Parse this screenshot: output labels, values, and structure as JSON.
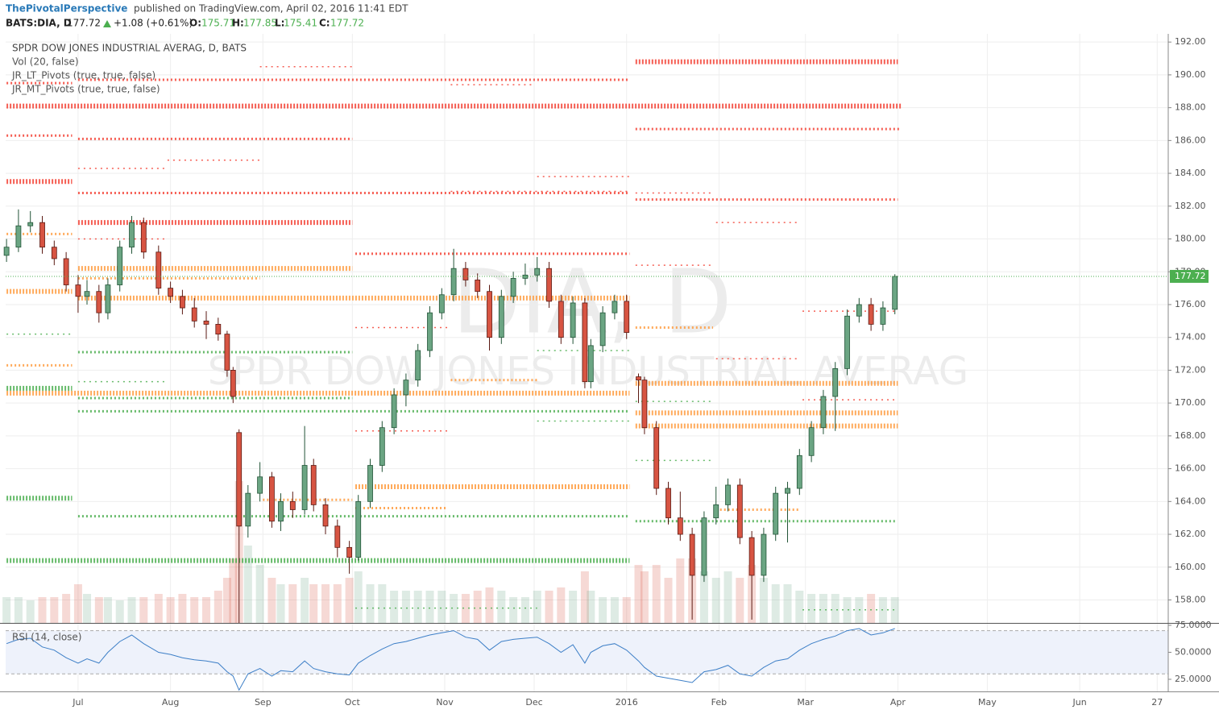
{
  "header": {
    "author": "ThePivotalPerspective",
    "published": "published on TradingView.com, April 02, 2016 11:41 EDT",
    "symbol": "BATS:DIA, D",
    "last": "177.72",
    "change": "+1.08 (+0.61%)",
    "open_label": "O:",
    "open": "175.71",
    "high_label": "H:",
    "high": "177.85",
    "low_label": "L:",
    "low": "175.41",
    "close_label": "C:",
    "close": "177.72"
  },
  "chart_data": {
    "type": "candlestick",
    "title": "SPDR DOW JONES INDUSTRIAL AVERAG, D, BATS",
    "studies": [
      "Vol (20, false)",
      "JR_LT_Pivots (true, true, false)",
      "JR_MT_Pivots (true, true, false)"
    ],
    "watermark": [
      "DIA, D",
      "SPDR DOW JONES INDUSTRIAL AVERAG"
    ],
    "up_color": "#6ba583",
    "down_color": "#d75442",
    "x": [
      -24,
      -20,
      -16,
      -12,
      -8,
      -4,
      0,
      3,
      7,
      10,
      14,
      18,
      22,
      27,
      31,
      35,
      39,
      43,
      47,
      50,
      52,
      54,
      57,
      61,
      65,
      68,
      72,
      76,
      79,
      83,
      87,
      91,
      94,
      98,
      102,
      106,
      110,
      114,
      118,
      122,
      126,
      130,
      134,
      138,
      142,
      146,
      150,
      154,
      158,
      162,
      166,
      170,
      172,
      176,
      180,
      184,
      188,
      190,
      194,
      198,
      202,
      206,
      210,
      214,
      218,
      222,
      226,
      230,
      234,
      238,
      242,
      246,
      250,
      254,
      258,
      262,
      266,
      270,
      274
    ],
    "open": [
      179.0,
      179.5,
      180.8,
      181.0,
      179.5,
      178.8,
      177.2,
      176.5,
      176.8,
      175.5,
      177.2,
      179.5,
      181.0,
      179.2,
      177.0,
      176.5,
      175.8,
      175.0,
      174.8,
      174.2,
      172.0,
      168.2,
      162.5,
      164.5,
      165.5,
      162.8,
      164.0,
      163.5,
      166.2,
      163.8,
      162.5,
      161.2,
      160.6,
      164.0,
      166.2,
      168.5,
      170.5,
      171.4,
      173.2,
      175.5,
      176.6,
      178.2,
      177.5,
      176.8,
      174.0,
      176.5,
      177.6,
      177.8,
      178.2,
      176.2,
      174.0,
      176.1,
      171.3,
      173.5,
      175.5,
      176.2,
      171.6,
      171.4,
      168.5,
      164.8,
      163.0,
      162.0,
      159.5,
      163.0,
      163.8,
      165.0,
      161.8,
      159.5,
      162.0,
      164.5,
      164.8,
      166.8,
      168.5,
      170.4,
      172.1,
      175.3,
      176.0,
      174.8,
      175.71
    ],
    "high": [
      180.0,
      181.8,
      181.7,
      181.4,
      179.9,
      179.2,
      177.8,
      177.5,
      177.2,
      177.6,
      179.9,
      181.4,
      181.3,
      179.6,
      177.4,
      176.9,
      176.4,
      175.6,
      175.2,
      174.4,
      172.2,
      168.4,
      165.0,
      166.4,
      165.8,
      164.5,
      164.6,
      168.6,
      166.6,
      164.2,
      162.9,
      161.6,
      164.4,
      166.6,
      168.9,
      170.9,
      171.8,
      173.6,
      175.9,
      177.0,
      179.4,
      178.6,
      177.9,
      177.2,
      176.9,
      178.0,
      178.5,
      178.9,
      178.6,
      176.6,
      176.5,
      176.4,
      173.9,
      175.9,
      176.6,
      176.6,
      171.8,
      171.6,
      168.9,
      165.2,
      164.6,
      162.4,
      163.4,
      164.9,
      165.4,
      165.4,
      162.2,
      162.4,
      164.9,
      165.2,
      167.2,
      168.9,
      170.8,
      172.5,
      175.7,
      176.4,
      176.4,
      176.2,
      177.85
    ],
    "low": [
      178.6,
      179.2,
      180.4,
      179.1,
      178.4,
      176.8,
      175.5,
      176.0,
      174.9,
      175.1,
      176.8,
      179.1,
      178.8,
      176.6,
      176.1,
      175.4,
      174.6,
      173.9,
      173.8,
      171.6,
      170.0,
      156.6,
      161.8,
      164.0,
      162.4,
      162.2,
      163.0,
      163.2,
      163.4,
      162.0,
      160.6,
      159.6,
      160.4,
      163.6,
      165.8,
      168.1,
      169.8,
      171.0,
      172.8,
      175.1,
      176.2,
      177.1,
      176.4,
      173.2,
      173.6,
      176.1,
      177.2,
      177.4,
      175.8,
      173.6,
      173.6,
      170.9,
      170.9,
      173.1,
      175.1,
      173.9,
      170.0,
      168.1,
      164.4,
      162.6,
      161.6,
      156.8,
      159.1,
      162.6,
      163.4,
      161.4,
      156.8,
      159.1,
      161.6,
      161.5,
      164.4,
      166.4,
      168.1,
      168.3,
      171.7,
      174.9,
      174.4,
      174.4,
      175.41
    ],
    "close": [
      179.5,
      180.8,
      181.0,
      179.5,
      178.8,
      177.2,
      176.5,
      176.8,
      175.5,
      177.2,
      179.5,
      181.0,
      179.2,
      177.0,
      176.5,
      175.8,
      175.0,
      174.8,
      174.2,
      172.0,
      170.4,
      162.5,
      164.5,
      165.5,
      162.8,
      164.0,
      163.5,
      166.2,
      163.8,
      162.5,
      161.2,
      160.6,
      164.0,
      166.2,
      168.5,
      170.5,
      171.4,
      173.2,
      175.5,
      176.6,
      178.2,
      177.5,
      176.8,
      174.0,
      176.5,
      177.6,
      177.8,
      178.2,
      176.2,
      174.0,
      176.1,
      171.3,
      173.5,
      175.5,
      176.2,
      174.3,
      171.4,
      168.5,
      164.8,
      163.0,
      162.0,
      159.5,
      163.0,
      163.8,
      165.0,
      161.8,
      159.5,
      162.0,
      164.5,
      164.8,
      166.8,
      168.5,
      170.4,
      172.1,
      175.3,
      176.0,
      174.8,
      175.8,
      177.72
    ],
    "volume": [
      4,
      4,
      3.5,
      4,
      4,
      4.5,
      6,
      4.5,
      4,
      4,
      3.5,
      4,
      4,
      4.5,
      4,
      4.5,
      4,
      4,
      5,
      7,
      10,
      22,
      12,
      9,
      7,
      6,
      6,
      7,
      6,
      6,
      6,
      7,
      8,
      6,
      6,
      5,
      5,
      5,
      5,
      5,
      4.5,
      4.5,
      5,
      5.5,
      5,
      4,
      4,
      5,
      5,
      5.5,
      5,
      8,
      5,
      4,
      4,
      4,
      9,
      8,
      9,
      7,
      10,
      10,
      8,
      7,
      8,
      7,
      9,
      7,
      6,
      6,
      5,
      4.5,
      4.5,
      4.5,
      4,
      4,
      4.5,
      4,
      4
    ],
    "volume_lim": [
      0,
      25
    ],
    "xlim": [
      -24.3,
      365.7
    ],
    "xticks": [
      {
        "value": 0,
        "label": "Jul"
      },
      {
        "value": 31,
        "label": "Aug"
      },
      {
        "value": 62,
        "label": "Sep"
      },
      {
        "value": 92,
        "label": "Oct"
      },
      {
        "value": 123,
        "label": "Nov"
      },
      {
        "value": 153,
        "label": "Dec"
      },
      {
        "value": 184,
        "label": "2016"
      },
      {
        "value": 215,
        "label": "Feb"
      },
      {
        "value": 244,
        "label": "Mar"
      },
      {
        "value": 275,
        "label": "Apr"
      },
      {
        "value": 305,
        "label": "May"
      },
      {
        "value": 336,
        "label": "Jun"
      },
      {
        "value": 362,
        "label": "27"
      }
    ],
    "ylim": [
      156.6,
      192.5
    ],
    "yticks": [
      {
        "value": 158,
        "label": "158.00"
      },
      {
        "value": 160,
        "label": "160.00"
      },
      {
        "value": 162,
        "label": "162.00"
      },
      {
        "value": 164,
        "label": "164.00"
      },
      {
        "value": 166,
        "label": "166.00"
      },
      {
        "value": 168,
        "label": "168.00"
      },
      {
        "value": 170,
        "label": "170.00"
      },
      {
        "value": 172,
        "label": "172.00"
      },
      {
        "value": 174,
        "label": "174.00"
      },
      {
        "value": 176,
        "label": "176.00"
      },
      {
        "value": 178,
        "label": "178.00"
      },
      {
        "value": 180,
        "label": "180.00"
      },
      {
        "value": 182,
        "label": "182.00"
      },
      {
        "value": 184,
        "label": "184.00"
      },
      {
        "value": 186,
        "label": "186.00"
      },
      {
        "value": 188,
        "label": "188.00"
      },
      {
        "value": 190,
        "label": "190.00"
      },
      {
        "value": 192,
        "label": "192.00"
      }
    ],
    "pivots": [
      {
        "x": [
          61,
          92
        ],
        "value": 190.5,
        "color": "#f44336",
        "size": 1
      },
      {
        "x": [
          -24,
          -2
        ],
        "value": 189.5,
        "color": "#f44336",
        "size": 2
      },
      {
        "x": [
          0,
          185
        ],
        "value": 189.7,
        "color": "#f44336",
        "size": 2
      },
      {
        "x": [
          125,
          153
        ],
        "value": 189.4,
        "color": "#f44336",
        "size": 1
      },
      {
        "x": [
          -24,
          276
        ],
        "value": 188.1,
        "color": "#f44336",
        "size": 3
      },
      {
        "x": [
          -24,
          -2
        ],
        "value": 186.3,
        "color": "#f44336",
        "size": 2
      },
      {
        "x": [
          0,
          92
        ],
        "value": 186.1,
        "color": "#f44336",
        "size": 2
      },
      {
        "x": [
          30,
          61
        ],
        "value": 184.8,
        "color": "#f44336",
        "size": 1
      },
      {
        "x": [
          0,
          30
        ],
        "value": 184.3,
        "color": "#f44336",
        "size": 1
      },
      {
        "x": [
          -24,
          -2
        ],
        "value": 183.5,
        "color": "#f44336",
        "size": 3
      },
      {
        "x": [
          154,
          185
        ],
        "value": 183.8,
        "color": "#f44336",
        "size": 1
      },
      {
        "x": [
          0,
          185
        ],
        "value": 182.8,
        "color": "#f44336",
        "size": 2
      },
      {
        "x": [
          125,
          185
        ],
        "value": 182.9,
        "color": "#f44336",
        "size": 1
      },
      {
        "x": [
          0,
          92
        ],
        "value": 181.0,
        "color": "#f44336",
        "size": 3
      },
      {
        "x": [
          0,
          30
        ],
        "value": 180.0,
        "color": "#f44336",
        "size": 1
      },
      {
        "x": [
          93,
          185
        ],
        "value": 179.1,
        "color": "#f44336",
        "size": 2
      },
      {
        "x": [
          187,
          213
        ],
        "value": 178.4,
        "color": "#f44336",
        "size": 1
      },
      {
        "x": [
          93,
          124
        ],
        "value": 174.6,
        "color": "#f44336",
        "size": 1
      },
      {
        "x": [
          93,
          124
        ],
        "value": 168.3,
        "color": "#f44336",
        "size": 1
      },
      {
        "x": [
          187,
          275
        ],
        "value": 190.8,
        "color": "#f44336",
        "size": 3
      },
      {
        "x": [
          187,
          276
        ],
        "value": 186.7,
        "color": "#f44336",
        "size": 2
      },
      {
        "x": [
          187,
          213
        ],
        "value": 182.8,
        "color": "#f44336",
        "size": 1
      },
      {
        "x": [
          187,
          275
        ],
        "value": 182.4,
        "color": "#f44336",
        "size": 2
      },
      {
        "x": [
          214,
          242
        ],
        "value": 181.0,
        "color": "#f44336",
        "size": 1
      },
      {
        "x": [
          243,
          274
        ],
        "value": 175.6,
        "color": "#f44336",
        "size": 1
      },
      {
        "x": [
          214,
          242
        ],
        "value": 172.7,
        "color": "#f44336",
        "size": 1
      },
      {
        "x": [
          243,
          275
        ],
        "value": 170.2,
        "color": "#f44336",
        "size": 1
      },
      {
        "x": [
          -24,
          -2
        ],
        "value": 180.3,
        "color": "#ff9c3f",
        "size": 2
      },
      {
        "x": [
          0,
          92
        ],
        "value": 178.2,
        "color": "#ff9c3f",
        "size": 3
      },
      {
        "x": [
          0,
          61
        ],
        "value": 177.6,
        "color": "#ff9c3f",
        "size": 2
      },
      {
        "x": [
          -24,
          -2
        ],
        "value": 176.8,
        "color": "#ff9c3f",
        "size": 3
      },
      {
        "x": [
          0,
          185
        ],
        "value": 176.4,
        "color": "#ff9c3f",
        "size": 3
      },
      {
        "x": [
          -24,
          -2
        ],
        "value": 172.3,
        "color": "#ff9c3f",
        "size": 2
      },
      {
        "x": [
          125,
          154
        ],
        "value": 171.4,
        "color": "#ff9c3f",
        "size": 2
      },
      {
        "x": [
          -24,
          185
        ],
        "value": 170.6,
        "color": "#ff9c3f",
        "size": 3
      },
      {
        "x": [
          187,
          213
        ],
        "value": 174.6,
        "color": "#ff9c3f",
        "size": 2
      },
      {
        "x": [
          187,
          275
        ],
        "value": 171.2,
        "color": "#ff9c3f",
        "size": 3
      },
      {
        "x": [
          187,
          275
        ],
        "value": 169.4,
        "color": "#ff9c3f",
        "size": 3
      },
      {
        "x": [
          187,
          275
        ],
        "value": 168.6,
        "color": "#ff9c3f",
        "size": 3
      },
      {
        "x": [
          93,
          185
        ],
        "value": 164.9,
        "color": "#ff9c3f",
        "size": 3
      },
      {
        "x": [
          62,
          92
        ],
        "value": 164.1,
        "color": "#ff9c3f",
        "size": 2
      },
      {
        "x": [
          93,
          124
        ],
        "value": 163.6,
        "color": "#ff9c3f",
        "size": 2
      },
      {
        "x": [
          214,
          242
        ],
        "value": 163.5,
        "color": "#ff9c3f",
        "size": 2
      },
      {
        "x": [
          -24,
          -2
        ],
        "value": 174.2,
        "color": "#4caf50",
        "size": 1
      },
      {
        "x": [
          0,
          92
        ],
        "value": 173.1,
        "color": "#4caf50",
        "size": 2
      },
      {
        "x": [
          154,
          185
        ],
        "value": 173.2,
        "color": "#4caf50",
        "size": 1
      },
      {
        "x": [
          0,
          30
        ],
        "value": 171.3,
        "color": "#4caf50",
        "size": 1
      },
      {
        "x": [
          -24,
          -2
        ],
        "value": 170.9,
        "color": "#4caf50",
        "size": 3
      },
      {
        "x": [
          0,
          92
        ],
        "value": 170.3,
        "color": "#4caf50",
        "size": 2
      },
      {
        "x": [
          187,
          213
        ],
        "value": 170.1,
        "color": "#4caf50",
        "size": 1
      },
      {
        "x": [
          0,
          185
        ],
        "value": 169.5,
        "color": "#4caf50",
        "size": 2
      },
      {
        "x": [
          154,
          185
        ],
        "value": 168.9,
        "color": "#4caf50",
        "size": 1
      },
      {
        "x": [
          187,
          213
        ],
        "value": 166.5,
        "color": "#4caf50",
        "size": 1
      },
      {
        "x": [
          -24,
          -2
        ],
        "value": 164.2,
        "color": "#4caf50",
        "size": 3
      },
      {
        "x": [
          0,
          185
        ],
        "value": 163.1,
        "color": "#4caf50",
        "size": 2
      },
      {
        "x": [
          187,
          274
        ],
        "value": 162.8,
        "color": "#4caf50",
        "size": 2
      },
      {
        "x": [
          -24,
          185
        ],
        "value": 160.4,
        "color": "#4caf50",
        "size": 3
      },
      {
        "x": [
          93,
          154
        ],
        "value": 157.5,
        "color": "#4caf50",
        "size": 1
      },
      {
        "x": [
          243,
          274
        ],
        "value": 157.4,
        "color": "#4caf50",
        "size": 1
      }
    ],
    "rsi": {
      "title": "RSI (14, close)",
      "color": "#3d7fc7",
      "values": [
        58,
        62,
        63,
        55,
        52,
        45,
        40,
        44,
        40,
        50,
        60,
        66,
        58,
        50,
        48,
        45,
        43,
        42,
        40,
        32,
        28,
        15,
        30,
        35,
        28,
        33,
        32,
        42,
        35,
        32,
        30,
        29,
        40,
        47,
        53,
        58,
        60,
        63,
        66,
        68,
        70,
        64,
        62,
        52,
        60,
        62,
        63,
        64,
        58,
        50,
        57,
        40,
        50,
        56,
        58,
        52,
        42,
        36,
        28,
        26,
        24,
        22,
        32,
        34,
        38,
        30,
        28,
        36,
        42,
        44,
        52,
        58,
        62,
        65,
        70,
        72,
        66,
        68,
        72
      ],
      "ylim": [
        13.8,
        75.7
      ],
      "yticks": [
        {
          "value": 25,
          "label": "25.0000"
        },
        {
          "value": 50,
          "label": "50.0000"
        },
        {
          "value": 75,
          "label": "75.0000"
        }
      ],
      "bands": [
        30,
        70
      ]
    }
  }
}
